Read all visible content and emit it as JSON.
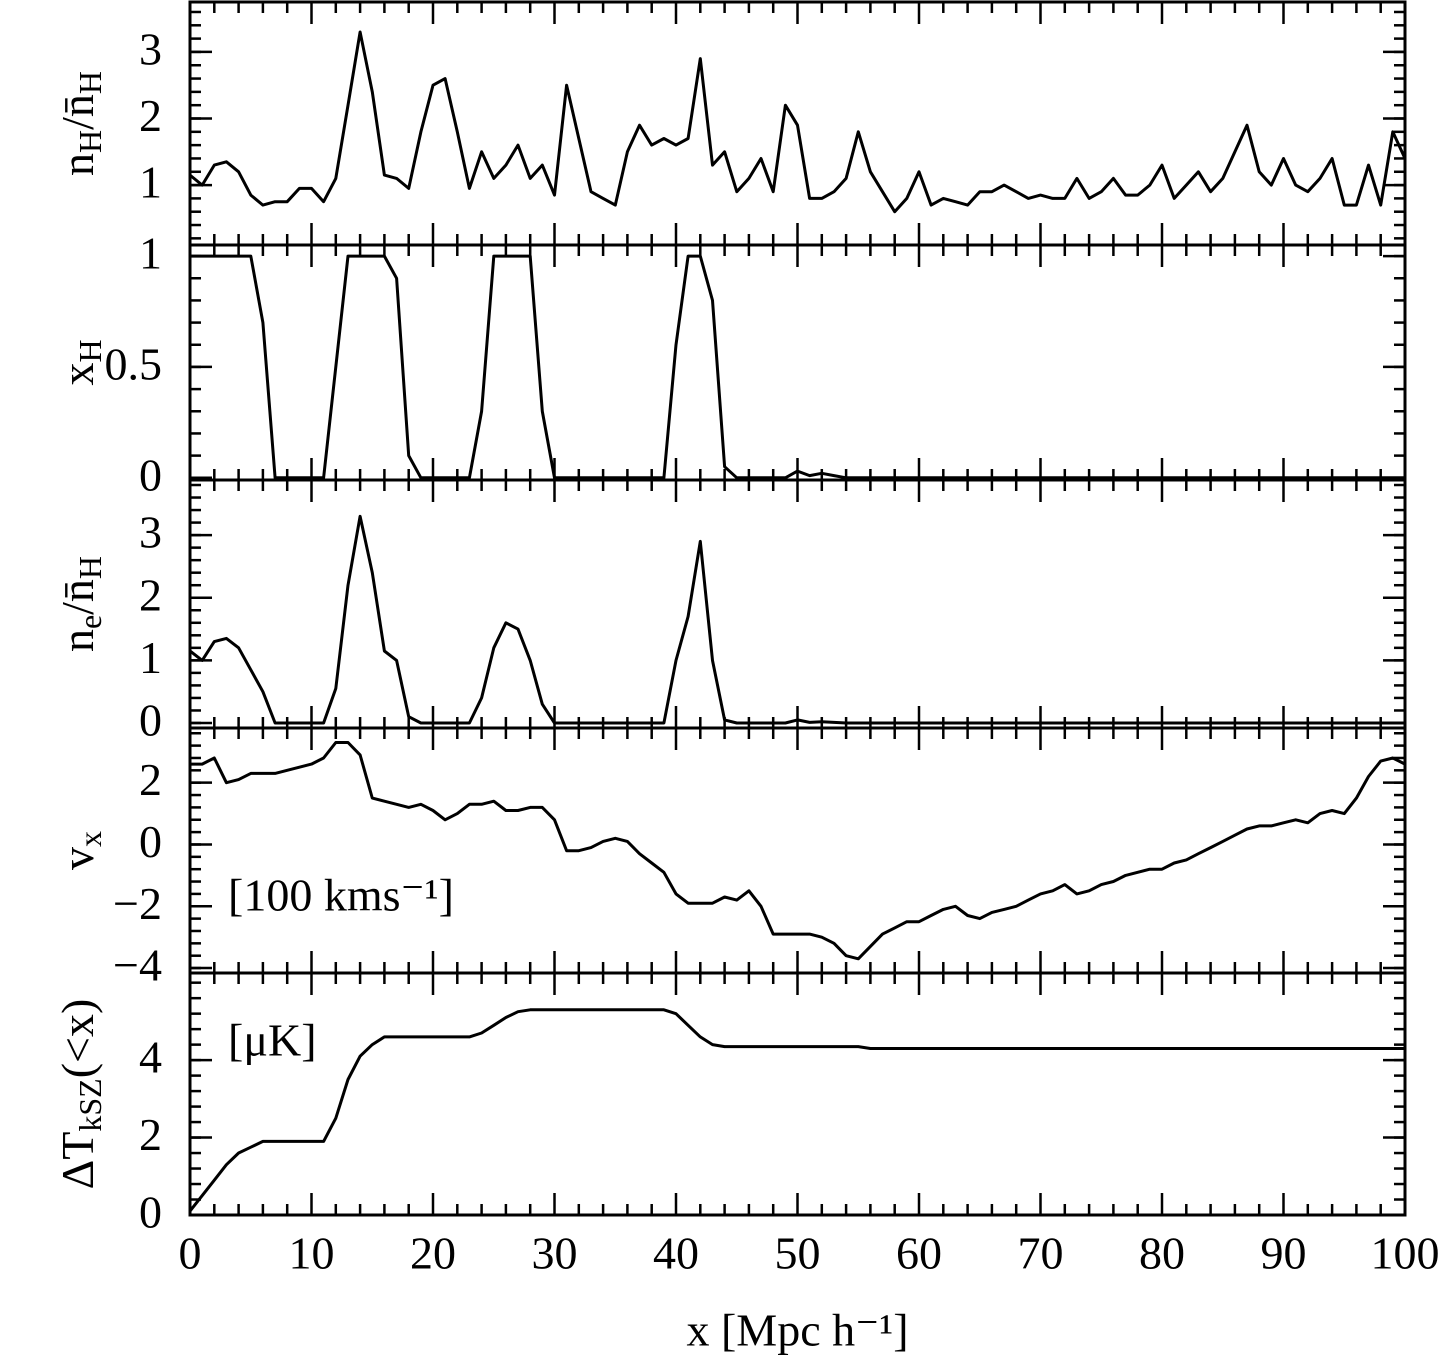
{
  "chart_data": [
    {
      "type": "line",
      "ylabel": [
        "n",
        "H",
        "/n̄",
        "H"
      ],
      "ylim": [
        0.1,
        3.75
      ],
      "yticks": [
        1,
        2,
        3
      ],
      "x": [
        0,
        1,
        2,
        3,
        4,
        5,
        6,
        7,
        8,
        9,
        10,
        11,
        12,
        13,
        14,
        15,
        16,
        17,
        18,
        19,
        20,
        21,
        22,
        23,
        24,
        25,
        26,
        27,
        28,
        29,
        30,
        31,
        32,
        33,
        34,
        35,
        36,
        37,
        38,
        39,
        40,
        41,
        42,
        43,
        44,
        45,
        46,
        47,
        48,
        49,
        50,
        51,
        52,
        53,
        54,
        55,
        56,
        57,
        58,
        59,
        60,
        61,
        62,
        63,
        64,
        65,
        66,
        67,
        68,
        69,
        70,
        71,
        72,
        73,
        74,
        75,
        76,
        77,
        78,
        79,
        80,
        81,
        82,
        83,
        84,
        85,
        86,
        87,
        88,
        89,
        90,
        91,
        92,
        93,
        94,
        95,
        96,
        97,
        98,
        99,
        100
      ],
      "values": [
        1.15,
        1.0,
        1.3,
        1.35,
        1.2,
        0.85,
        0.7,
        0.75,
        0.75,
        0.95,
        0.95,
        0.75,
        1.1,
        2.2,
        3.3,
        2.4,
        1.15,
        1.1,
        0.95,
        1.8,
        2.5,
        2.6,
        1.8,
        0.95,
        1.5,
        1.1,
        1.3,
        1.6,
        1.1,
        1.3,
        0.85,
        2.5,
        1.7,
        0.9,
        0.8,
        0.7,
        1.5,
        1.9,
        1.6,
        1.7,
        1.6,
        1.7,
        2.9,
        1.3,
        1.5,
        0.9,
        1.1,
        1.4,
        0.9,
        2.2,
        1.9,
        0.8,
        0.8,
        0.9,
        1.1,
        1.8,
        1.2,
        0.9,
        0.6,
        0.8,
        1.2,
        0.7,
        0.8,
        0.75,
        0.7,
        0.9,
        0.9,
        1.0,
        0.9,
        0.8,
        0.85,
        0.8,
        0.8,
        1.1,
        0.8,
        0.9,
        1.1,
        0.85,
        0.85,
        1.0,
        1.3,
        0.8,
        1.0,
        1.2,
        0.9,
        1.1,
        1.5,
        1.9,
        1.2,
        1.0,
        1.4,
        1.0,
        0.9,
        1.1,
        1.4,
        0.7,
        0.7,
        1.3,
        0.7,
        1.8,
        1.4
      ]
    },
    {
      "type": "line",
      "ylabel": [
        "x",
        "H"
      ],
      "ylim": [
        -0.01,
        1.05
      ],
      "yticks": [
        0,
        0.5,
        1
      ],
      "x": [
        0,
        1,
        2,
        3,
        4,
        5,
        6,
        7,
        8,
        9,
        10,
        11,
        12,
        13,
        14,
        15,
        16,
        17,
        18,
        19,
        20,
        21,
        22,
        23,
        24,
        25,
        26,
        27,
        28,
        29,
        30,
        31,
        32,
        33,
        34,
        35,
        36,
        37,
        38,
        39,
        40,
        41,
        42,
        43,
        44,
        45,
        46,
        47,
        48,
        49,
        50,
        51,
        52,
        53,
        54,
        55,
        56,
        57,
        58,
        59,
        60,
        61,
        62,
        63,
        64,
        65,
        66,
        67,
        68,
        69,
        70,
        71,
        72,
        73,
        74,
        75,
        76,
        77,
        78,
        79,
        80,
        81,
        82,
        83,
        84,
        85,
        86,
        87,
        88,
        89,
        90,
        91,
        92,
        93,
        94,
        95,
        96,
        97,
        98,
        99,
        100
      ],
      "values": [
        1,
        1,
        1,
        1,
        1,
        1,
        0.7,
        0,
        0,
        0,
        0,
        0,
        0.5,
        1,
        1,
        1,
        1,
        0.9,
        0.1,
        0,
        0,
        0,
        0,
        0,
        0.3,
        1,
        1,
        1,
        1,
        0.3,
        0,
        0,
        0,
        0,
        0,
        0,
        0,
        0,
        0,
        0,
        0.6,
        1,
        1,
        0.8,
        0.05,
        0,
        0,
        0,
        0,
        0,
        0.03,
        0.01,
        0.02,
        0.01,
        0,
        0,
        0,
        0,
        0,
        0,
        0,
        0,
        0,
        0,
        0,
        0,
        0,
        0,
        0,
        0,
        0,
        0,
        0,
        0,
        0,
        0,
        0,
        0,
        0,
        0,
        0,
        0,
        0,
        0,
        0,
        0,
        0,
        0,
        0,
        0,
        0,
        0,
        0,
        0,
        0,
        0,
        0,
        0,
        0,
        0,
        0
      ]
    },
    {
      "type": "line",
      "ylabel": [
        "n",
        "e",
        "/n̄",
        "H"
      ],
      "ylim": [
        -0.08,
        3.88
      ],
      "yticks": [
        0,
        1,
        2,
        3
      ],
      "x": [
        0,
        1,
        2,
        3,
        4,
        5,
        6,
        7,
        8,
        9,
        10,
        11,
        12,
        13,
        14,
        15,
        16,
        17,
        18,
        19,
        20,
        21,
        22,
        23,
        24,
        25,
        26,
        27,
        28,
        29,
        30,
        31,
        32,
        33,
        34,
        35,
        36,
        37,
        38,
        39,
        40,
        41,
        42,
        43,
        44,
        45,
        46,
        47,
        48,
        49,
        50,
        51,
        52,
        53,
        54,
        55,
        56,
        57,
        58,
        59,
        60,
        61,
        62,
        63,
        64,
        65,
        66,
        67,
        68,
        69,
        70,
        71,
        72,
        73,
        74,
        75,
        76,
        77,
        78,
        79,
        80,
        81,
        82,
        83,
        84,
        85,
        86,
        87,
        88,
        89,
        90,
        91,
        92,
        93,
        94,
        95,
        96,
        97,
        98,
        99,
        100
      ],
      "values": [
        1.15,
        1.0,
        1.3,
        1.35,
        1.2,
        0.85,
        0.5,
        0,
        0,
        0,
        0,
        0,
        0.55,
        2.2,
        3.3,
        2.4,
        1.15,
        1.0,
        0.1,
        0,
        0,
        0,
        0,
        0,
        0.4,
        1.2,
        1.6,
        1.5,
        1.0,
        0.3,
        0,
        0,
        0,
        0,
        0,
        0,
        0,
        0,
        0,
        0,
        1.0,
        1.7,
        2.9,
        1.0,
        0.05,
        0,
        0,
        0,
        0,
        0,
        0.05,
        0.01,
        0.02,
        0.01,
        0,
        0,
        0,
        0,
        0,
        0,
        0,
        0,
        0,
        0,
        0,
        0,
        0,
        0,
        0,
        0,
        0,
        0,
        0,
        0,
        0,
        0,
        0,
        0,
        0,
        0,
        0,
        0,
        0,
        0,
        0,
        0,
        0,
        0,
        0,
        0,
        0,
        0,
        0,
        0,
        0,
        0,
        0,
        0,
        0,
        0,
        0
      ]
    },
    {
      "type": "line",
      "ylabel": [
        "v",
        "x"
      ],
      "annotation": "[100 kms⁻¹]",
      "ylim": [
        -4.16,
        3.77
      ],
      "yticks": [
        {
          "value": -4,
          "label": "−4"
        },
        {
          "value": -2,
          "label": "−2"
        },
        0,
        2
      ],
      "x": [
        0,
        1,
        2,
        3,
        4,
        5,
        6,
        7,
        8,
        9,
        10,
        11,
        12,
        13,
        14,
        15,
        16,
        17,
        18,
        19,
        20,
        21,
        22,
        23,
        24,
        25,
        26,
        27,
        28,
        29,
        30,
        31,
        32,
        33,
        34,
        35,
        36,
        37,
        38,
        39,
        40,
        41,
        42,
        43,
        44,
        45,
        46,
        47,
        48,
        49,
        50,
        51,
        52,
        53,
        54,
        55,
        56,
        57,
        58,
        59,
        60,
        61,
        62,
        63,
        64,
        65,
        66,
        67,
        68,
        69,
        70,
        71,
        72,
        73,
        74,
        75,
        76,
        77,
        78,
        79,
        80,
        81,
        82,
        83,
        84,
        85,
        86,
        87,
        88,
        89,
        90,
        91,
        92,
        93,
        94,
        95,
        96,
        97,
        98,
        99,
        100
      ],
      "values": [
        2.6,
        2.6,
        2.8,
        2.0,
        2.1,
        2.3,
        2.3,
        2.3,
        2.4,
        2.5,
        2.6,
        2.8,
        3.3,
        3.3,
        2.9,
        1.5,
        1.4,
        1.3,
        1.2,
        1.3,
        1.1,
        0.8,
        1.0,
        1.3,
        1.3,
        1.4,
        1.1,
        1.1,
        1.2,
        1.2,
        0.8,
        -0.2,
        -0.2,
        -0.1,
        0.1,
        0.2,
        0.1,
        -0.3,
        -0.6,
        -0.9,
        -1.6,
        -1.9,
        -1.9,
        -1.9,
        -1.7,
        -1.8,
        -1.5,
        -2.0,
        -2.9,
        -2.9,
        -2.9,
        -2.9,
        -3.0,
        -3.2,
        -3.6,
        -3.7,
        -3.3,
        -2.9,
        -2.7,
        -2.5,
        -2.5,
        -2.3,
        -2.1,
        -2.0,
        -2.3,
        -2.4,
        -2.2,
        -2.1,
        -2.0,
        -1.8,
        -1.6,
        -1.5,
        -1.3,
        -1.6,
        -1.5,
        -1.3,
        -1.2,
        -1.0,
        -0.9,
        -0.8,
        -0.8,
        -0.6,
        -0.5,
        -0.3,
        -0.1,
        0.1,
        0.3,
        0.5,
        0.6,
        0.6,
        0.7,
        0.8,
        0.7,
        1.0,
        1.1,
        1.0,
        1.5,
        2.2,
        2.7,
        2.8,
        2.6
      ]
    },
    {
      "type": "line",
      "ylabel": [
        "ΔT",
        "kSZ",
        "(<x)"
      ],
      "annotation": "[μK]",
      "ylim": [
        0,
        6.25
      ],
      "yticks": [
        0,
        2,
        4
      ],
      "xlabel": "x [Mpc h⁻¹]",
      "xlim": [
        0,
        100
      ],
      "xticks": [
        0,
        10,
        20,
        30,
        40,
        50,
        60,
        70,
        80,
        90,
        100
      ],
      "x": [
        0,
        1,
        2,
        3,
        4,
        5,
        6,
        7,
        8,
        9,
        10,
        11,
        12,
        13,
        14,
        15,
        16,
        17,
        18,
        19,
        20,
        21,
        22,
        23,
        24,
        25,
        26,
        27,
        28,
        29,
        30,
        31,
        32,
        33,
        34,
        35,
        36,
        37,
        38,
        39,
        40,
        41,
        42,
        43,
        44,
        45,
        46,
        47,
        48,
        49,
        50,
        51,
        52,
        53,
        54,
        55,
        56,
        57,
        58,
        59,
        60,
        61,
        62,
        63,
        64,
        65,
        66,
        67,
        68,
        69,
        70,
        71,
        72,
        73,
        74,
        75,
        76,
        77,
        78,
        79,
        80,
        81,
        82,
        83,
        84,
        85,
        86,
        87,
        88,
        89,
        90,
        91,
        92,
        93,
        94,
        95,
        96,
        97,
        98,
        99,
        100
      ],
      "values": [
        0.1,
        0.5,
        0.9,
        1.3,
        1.6,
        1.75,
        1.9,
        1.9,
        1.9,
        1.9,
        1.9,
        1.9,
        2.5,
        3.5,
        4.1,
        4.4,
        4.6,
        4.6,
        4.6,
        4.6,
        4.6,
        4.6,
        4.6,
        4.6,
        4.7,
        4.9,
        5.1,
        5.25,
        5.3,
        5.3,
        5.3,
        5.3,
        5.3,
        5.3,
        5.3,
        5.3,
        5.3,
        5.3,
        5.3,
        5.3,
        5.2,
        4.9,
        4.6,
        4.4,
        4.35,
        4.35,
        4.35,
        4.35,
        4.35,
        4.35,
        4.35,
        4.35,
        4.35,
        4.35,
        4.35,
        4.35,
        4.3,
        4.3,
        4.3,
        4.3,
        4.3,
        4.3,
        4.3,
        4.3,
        4.3,
        4.3,
        4.3,
        4.3,
        4.3,
        4.3,
        4.3,
        4.3,
        4.3,
        4.3,
        4.3,
        4.3,
        4.3,
        4.3,
        4.3,
        4.3,
        4.3,
        4.3,
        4.3,
        4.3,
        4.3,
        4.3,
        4.3,
        4.3,
        4.3,
        4.3,
        4.3,
        4.3,
        4.3,
        4.3,
        4.3,
        4.3,
        4.3,
        4.3,
        4.3,
        4.3,
        4.3
      ]
    }
  ]
}
